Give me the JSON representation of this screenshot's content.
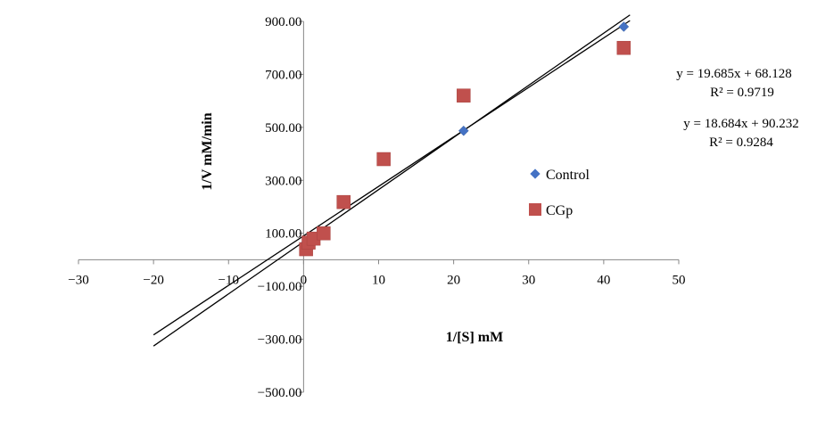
{
  "chart_data": {
    "type": "scatter",
    "title": "",
    "xlabel": "1/[S] mM",
    "ylabel": "1/V mM/min",
    "xlim": [
      -30,
      50
    ],
    "ylim": [
      -500,
      900
    ],
    "x_ticks": [
      -30,
      -20,
      -10,
      0,
      10,
      20,
      30,
      40,
      50
    ],
    "x_tick_labels": [
      "−30",
      "−20",
      "−10",
      "0",
      "10",
      "20",
      "30",
      "40",
      "50"
    ],
    "y_ticks": [
      900,
      700,
      500,
      300,
      100,
      -100,
      -300,
      -500
    ],
    "y_tick_labels": [
      "900.00",
      "700.00",
      "500.00",
      "300.00",
      "100.00",
      "−100.00",
      "−300.00",
      "−500.00"
    ],
    "grid": false,
    "legend_position": "right",
    "series": [
      {
        "name": "Control",
        "marker": "diamond",
        "color": "#4472c4",
        "x": [
          0.33,
          0.67,
          1.33,
          2.67,
          5.33,
          10.67,
          21.33,
          42.67
        ],
        "y": [
          65,
          75,
          85,
          95,
          215,
          385,
          487,
          880
        ],
        "trendline": {
          "slope": 19.685,
          "intercept": 68.128,
          "x_range": [
            -20,
            43.5
          ],
          "equation": "y = 19.685x + 68.128",
          "r2": "R² = 0.9719"
        }
      },
      {
        "name": "CGp",
        "marker": "square",
        "color": "#c0504d",
        "x": [
          0.33,
          0.67,
          1.33,
          2.67,
          5.33,
          10.67,
          21.33,
          42.67
        ],
        "y": [
          40,
          65,
          80,
          100,
          218,
          380,
          620,
          800
        ],
        "trendline": {
          "slope": 18.684,
          "intercept": 90.232,
          "x_range": [
            -20,
            43.5
          ],
          "equation": "y = 18.684x + 90.232",
          "r2": "R² = 0.9284"
        }
      }
    ]
  }
}
